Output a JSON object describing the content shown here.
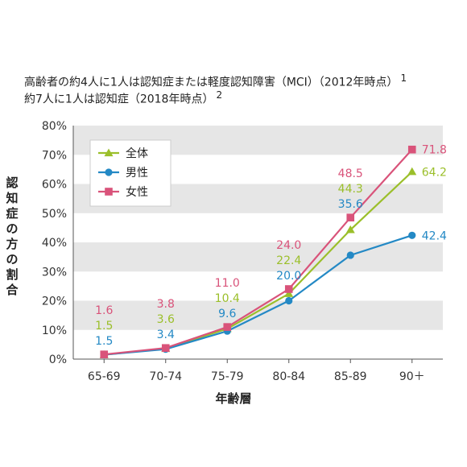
{
  "subtitles": [
    {
      "text": "高齢者の約4人に1人は認知症または軽度認知障害（MCI）（2012年時点）",
      "ref": "1"
    },
    {
      "text": "約7人に1人は認知症（2018年時点）",
      "ref": "2"
    }
  ],
  "chart_data": {
    "type": "line",
    "xlabel": "年齢層",
    "ylabel": "認知症の方の割合",
    "categories": [
      "65-69",
      "70-74",
      "75-79",
      "80-84",
      "85-89",
      "90＋"
    ],
    "ylim": [
      0,
      80
    ],
    "yticks": [
      "0%",
      "10%",
      "20%",
      "30%",
      "40%",
      "50%",
      "60%",
      "70%",
      "80%"
    ],
    "grid": "alternating horizontal bands",
    "legend": "top-left",
    "series": [
      {
        "name": "全体",
        "color": "#9bbf2a",
        "marker": "triangle",
        "values": [
          1.5,
          3.6,
          10.4,
          22.4,
          44.3,
          64.2
        ],
        "labels": [
          "1.5",
          "3.6",
          "10.4",
          "22.4",
          "44.3",
          "64.2"
        ]
      },
      {
        "name": "男性",
        "color": "#2489c5",
        "marker": "circle",
        "values": [
          1.5,
          3.4,
          9.6,
          20.0,
          35.6,
          42.4
        ],
        "labels": [
          "1.5",
          "3.4",
          "9.6",
          "20.0",
          "35.6",
          "42.4"
        ]
      },
      {
        "name": "女性",
        "color": "#d9537a",
        "marker": "square",
        "values": [
          1.6,
          3.8,
          11.0,
          24.0,
          48.5,
          71.8
        ],
        "labels": [
          "1.6",
          "3.8",
          "11.0",
          "24.0",
          "48.5",
          "71.8"
        ]
      }
    ]
  }
}
